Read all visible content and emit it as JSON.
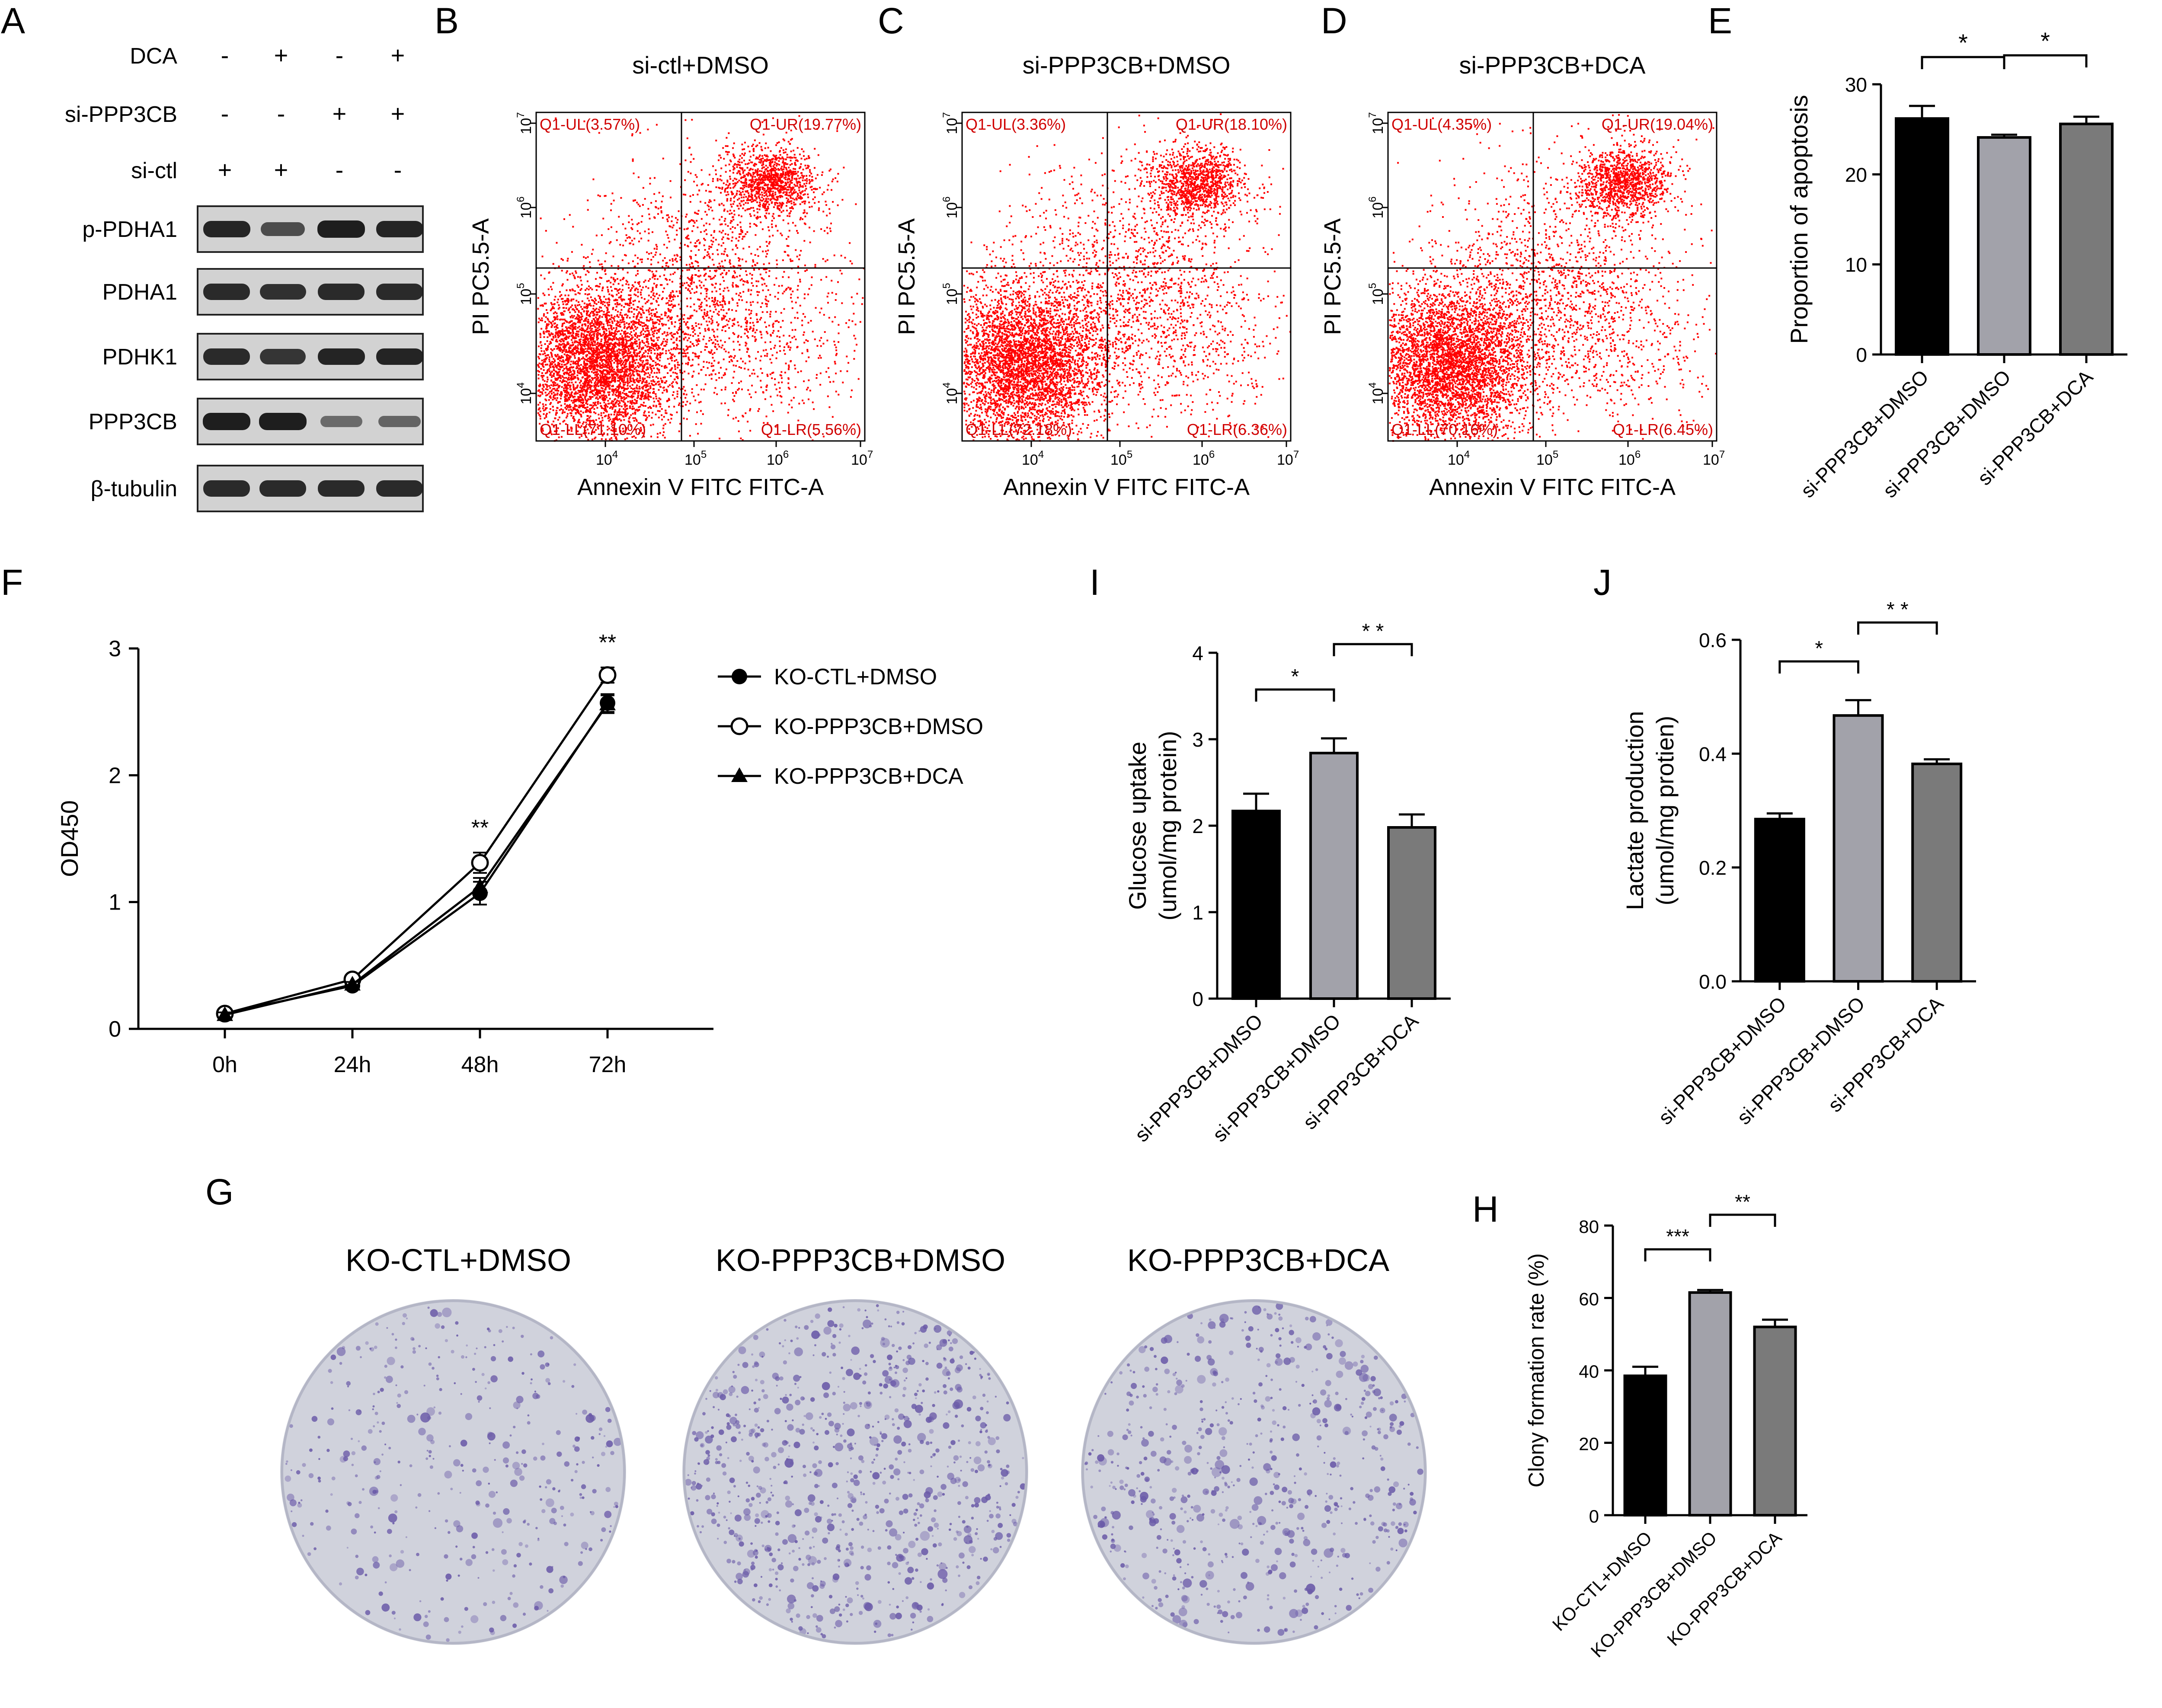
{
  "panels": {
    "A": "A",
    "B": "B",
    "C": "C",
    "D": "D",
    "E": "E",
    "F": "F",
    "G": "G",
    "H": "H",
    "I": "I",
    "J": "J"
  },
  "western_blot": {
    "conditions": [
      {
        "label": "DCA",
        "signs": [
          "-",
          "+",
          "-",
          "+"
        ]
      },
      {
        "label": "si-PPP3CB",
        "signs": [
          "-",
          "-",
          "+",
          "+"
        ]
      },
      {
        "label": "si-ctl",
        "signs": [
          "+",
          "+",
          "-",
          "-"
        ]
      }
    ],
    "proteins": [
      {
        "label": "p-PDHA1",
        "intensity": [
          0.95,
          0.6,
          1.0,
          0.95
        ]
      },
      {
        "label": "PDHA1",
        "intensity": [
          0.9,
          0.85,
          0.9,
          0.9
        ]
      },
      {
        "label": "PDHK1",
        "intensity": [
          0.9,
          0.8,
          0.95,
          0.95
        ]
      },
      {
        "label": "PPP3CB",
        "intensity": [
          1.0,
          1.0,
          0.35,
          0.4
        ]
      },
      {
        "label": "β-tubulin",
        "intensity": [
          0.9,
          0.9,
          0.9,
          0.9
        ]
      }
    ]
  },
  "flow": [
    {
      "title": "si-ctl+DMSO",
      "UL": "Q1-UL(3.57%)",
      "UR": "Q1-UR(19.77%)",
      "LL": "Q1-LL(71.10%)",
      "LR": "Q1-LR(5.56%)"
    },
    {
      "title": "si-PPP3CB+DMSO",
      "UL": "Q1-UL(3.36%)",
      "UR": "Q1-UR(18.10%)",
      "LL": "Q1-LL(72.18%)",
      "LR": "Q1-LR(6.36%)"
    },
    {
      "title": "si-PPP3CB+DCA",
      "UL": "Q1-UL(4.35%)",
      "UR": "Q1-UR(19.04%)",
      "LL": "Q1-LL(70.16%)",
      "LR": "Q1-LR(6.45%)"
    }
  ],
  "flow_axes": {
    "xlabel": "Annexin V FITC FITC-A",
    "ylabel": "PI PC5.5-A"
  },
  "colonies": {
    "titles": [
      "KO-CTL+DMSO",
      "KO-PPP3CB+DMSO",
      "KO-PPP3CB+DCA"
    ],
    "density": [
      0.45,
      1.0,
      0.75
    ]
  },
  "colors": {
    "black_bar": "#000000",
    "light_bar": "#a2a2aa",
    "mid_bar": "#7a7a7a",
    "flow_dots": "#ff0000",
    "colony": "#6a5aa8"
  },
  "chart_data": [
    {
      "id": "E",
      "type": "bar",
      "categories": [
        "si-PPP3CB+DMSO",
        "si-PPP3CB+DMSO",
        "si-PPP3CB+DCA"
      ],
      "values": [
        26.2,
        24.1,
        25.6
      ],
      "errors": [
        1.4,
        0.3,
        0.8
      ],
      "ylabel": "Proportion of apoptosis",
      "ylim": [
        0,
        30
      ],
      "yticks": [
        "0",
        "10",
        "20",
        "30"
      ],
      "significance": [
        {
          "from": 0,
          "to": 1,
          "label": "*"
        },
        {
          "from": 1,
          "to": 2,
          "label": "*"
        }
      ]
    },
    {
      "id": "F",
      "type": "line",
      "x": [
        "0h",
        "24h",
        "48h",
        "72h"
      ],
      "series": [
        {
          "name": "KO-CTL+DMSO",
          "marker": "filled-circle",
          "values": [
            0.12,
            0.34,
            1.07,
            2.57
          ],
          "errors": [
            0.02,
            0.02,
            0.09,
            0.07
          ]
        },
        {
          "name": "KO-PPP3CB+DMSO",
          "marker": "open-circle",
          "values": [
            0.12,
            0.39,
            1.31,
            2.79
          ],
          "errors": [
            0.02,
            0.02,
            0.08,
            0.06
          ]
        },
        {
          "name": "KO-PPP3CB+DCA",
          "marker": "filled-triangle",
          "values": [
            0.11,
            0.35,
            1.12,
            2.56
          ],
          "errors": [
            0.02,
            0.02,
            0.07,
            0.07
          ]
        }
      ],
      "ylabel": "OD450",
      "ylim": [
        0,
        3
      ],
      "yticks": [
        "0",
        "1",
        "2",
        "3"
      ],
      "annotations": [
        {
          "x": "48h",
          "label": "**"
        },
        {
          "x": "72h",
          "label": "**"
        }
      ],
      "legend": "right"
    },
    {
      "id": "I",
      "type": "bar",
      "categories": [
        "si-PPP3CB+DMSO",
        "si-PPP3CB+DMSO",
        "si-PPP3CB+DCA"
      ],
      "values": [
        2.17,
        2.84,
        1.98
      ],
      "errors": [
        0.2,
        0.17,
        0.15
      ],
      "ylabel_lines": [
        "Glucose uptake",
        "(umol/mg protein)"
      ],
      "ylim": [
        0,
        4
      ],
      "yticks": [
        "0",
        "1",
        "2",
        "3",
        "4"
      ],
      "significance": [
        {
          "from": 0,
          "to": 1,
          "label": "*"
        },
        {
          "from": 1,
          "to": 2,
          "label": "* *"
        }
      ]
    },
    {
      "id": "J",
      "type": "bar",
      "categories": [
        "si-PPP3CB+DMSO",
        "si-PPP3CB+DMSO",
        "si-PPP3CB+DCA"
      ],
      "values": [
        0.285,
        0.467,
        0.382
      ],
      "errors": [
        0.01,
        0.027,
        0.008
      ],
      "ylabel_lines": [
        "Lactate production",
        "(umol/mg protien)"
      ],
      "ylim": [
        0,
        0.6
      ],
      "yticks": [
        "0.0",
        "0.2",
        "0.4",
        "0.6"
      ],
      "significance": [
        {
          "from": 0,
          "to": 1,
          "label": "*"
        },
        {
          "from": 1,
          "to": 2,
          "label": "* *"
        }
      ]
    },
    {
      "id": "H",
      "type": "bar",
      "categories": [
        "KO-CTL+DMSO",
        "KO-PPP3CB+DMSO",
        "KO-PPP3CB+DCA"
      ],
      "values": [
        38.5,
        61.5,
        52
      ],
      "errors": [
        2.5,
        0.7,
        2
      ],
      "ylabel": "Clony formation rate (%)",
      "ylim": [
        0,
        80
      ],
      "yticks": [
        "0",
        "20",
        "40",
        "60",
        "80"
      ],
      "significance": [
        {
          "from": 0,
          "to": 1,
          "label": "***"
        },
        {
          "from": 1,
          "to": 2,
          "label": "**"
        }
      ]
    }
  ]
}
